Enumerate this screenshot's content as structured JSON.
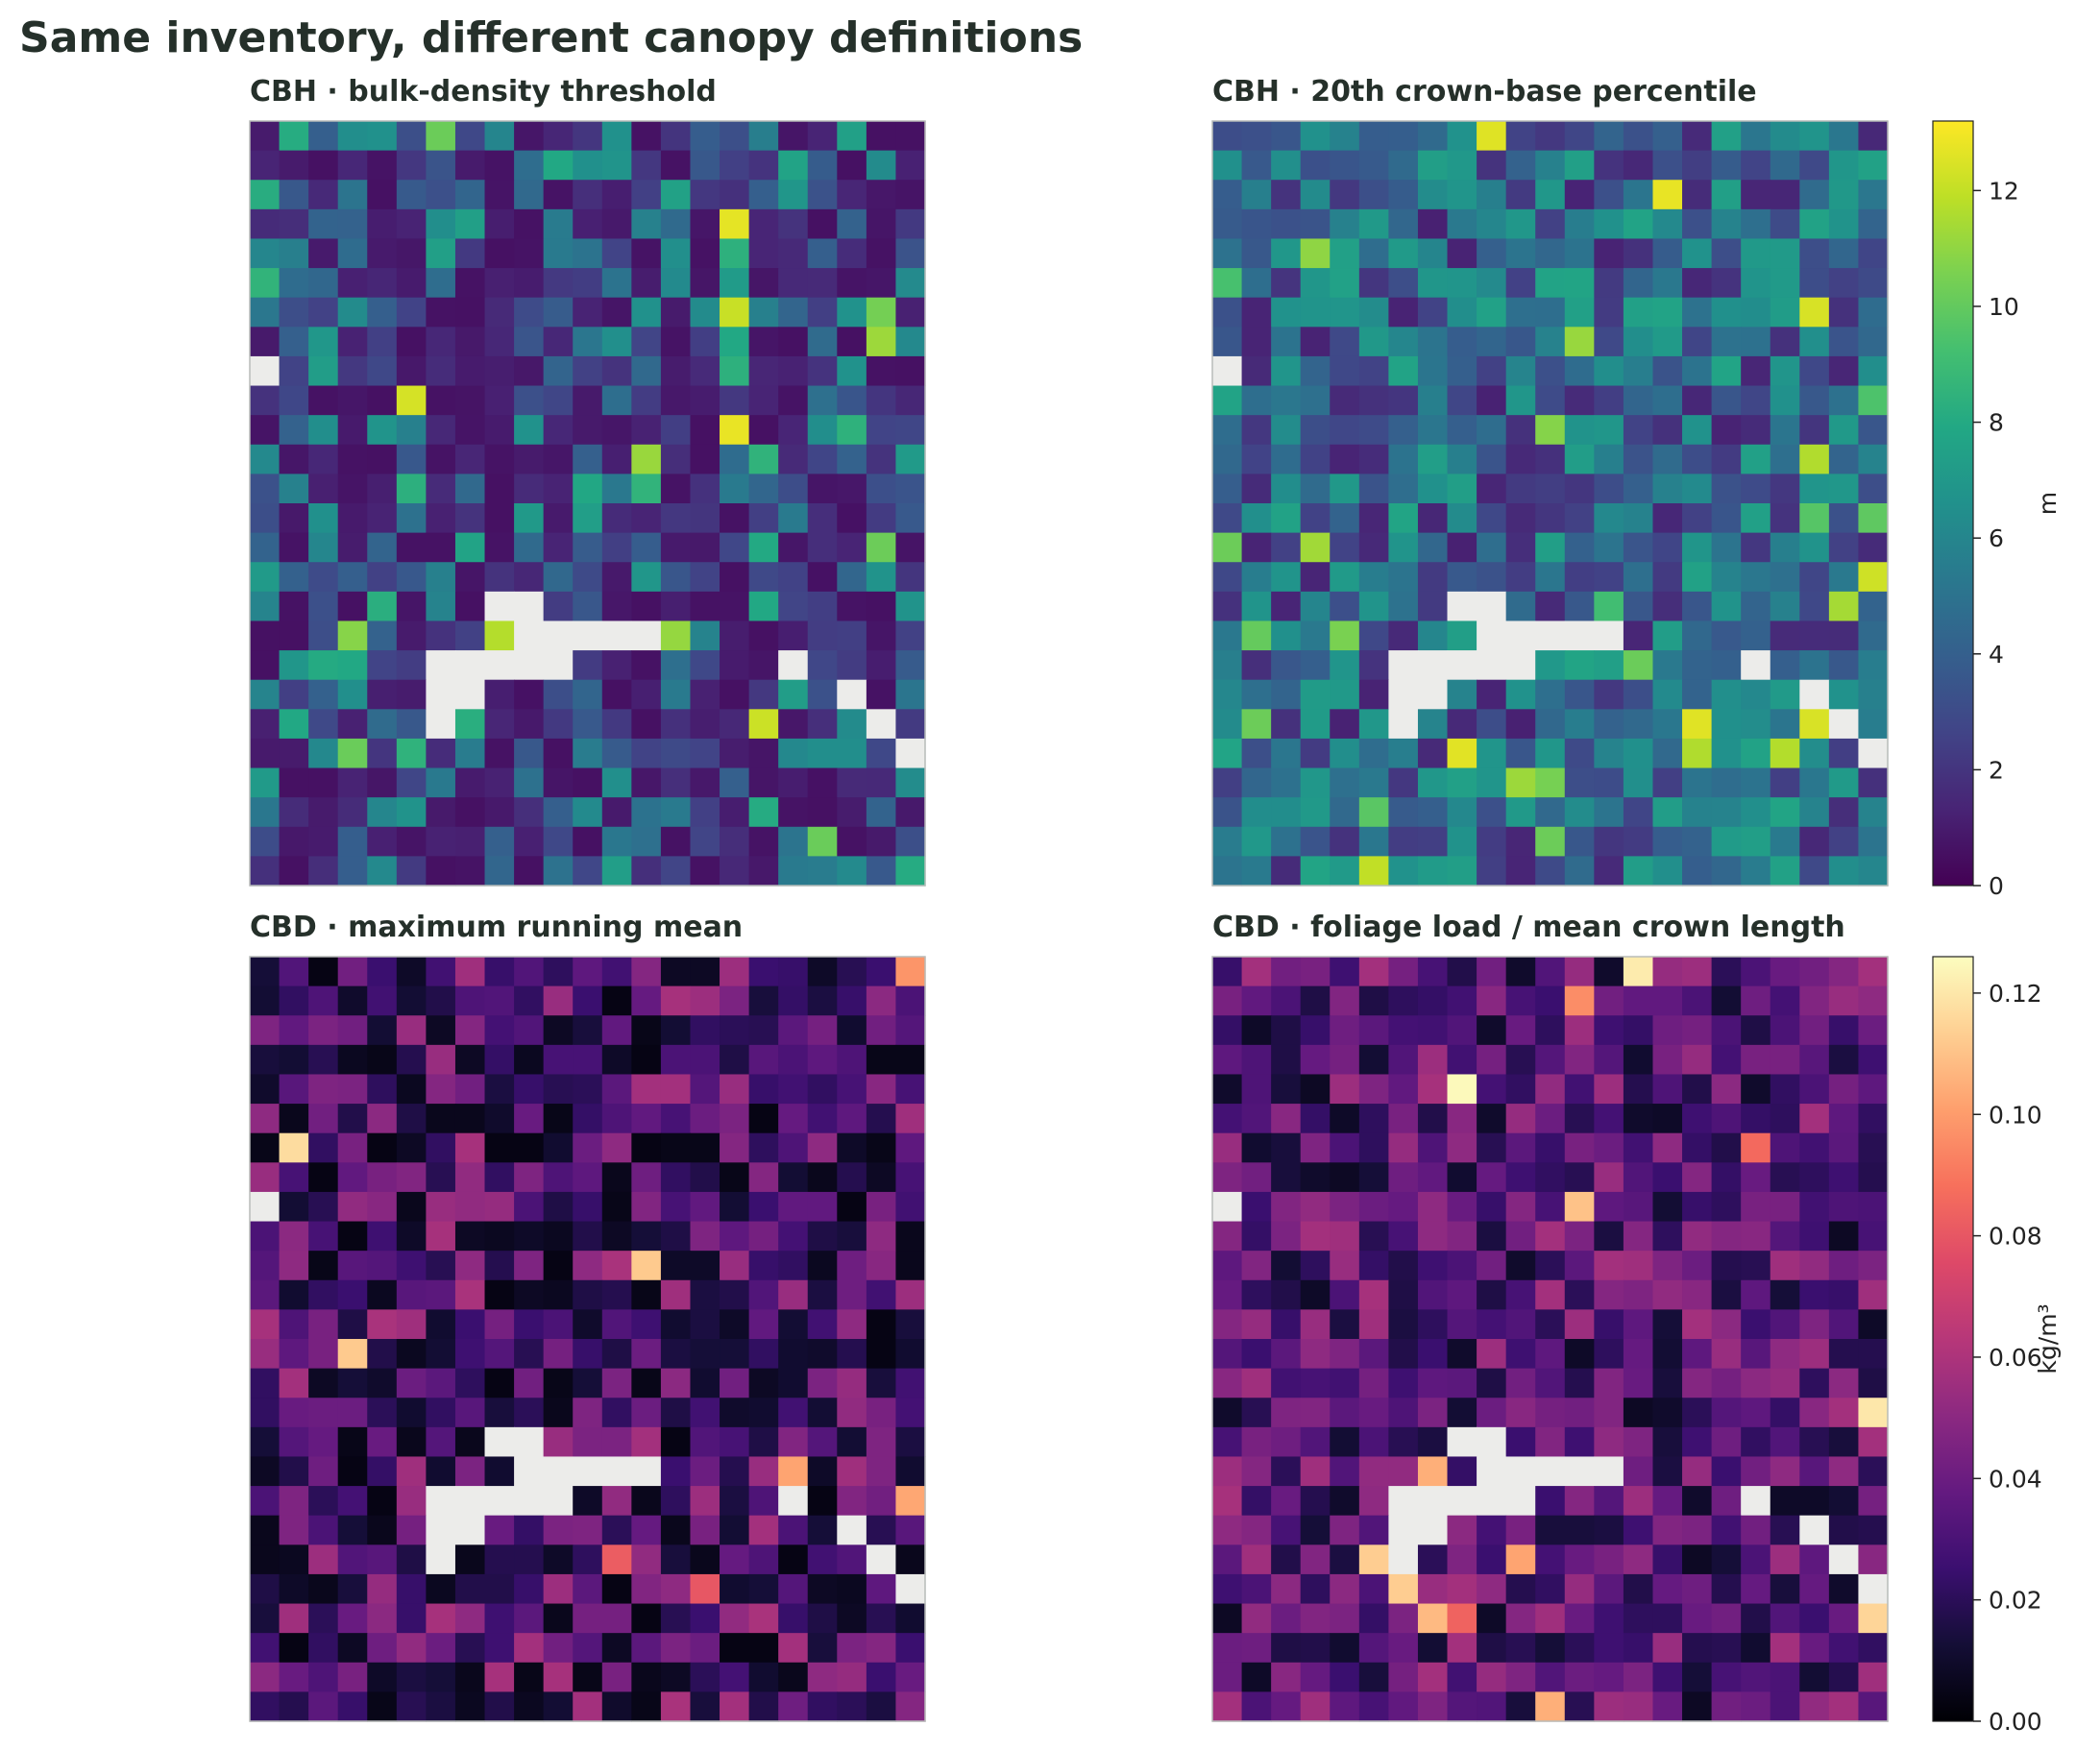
{
  "figure": {
    "title": "Same inventory, different canopy definitions"
  },
  "chart_data": [
    {
      "type": "heatmap",
      "title": "CBH · bulk-density threshold",
      "colormap": "viridis",
      "vmin": 0,
      "vmax": 13.2,
      "nodata_color": "#ececea",
      "grid": "26x23 cells (approximate reconstruction)",
      "note": "nodata cells shown in light gray",
      "values": []
    },
    {
      "type": "heatmap",
      "title": "CBH · 20th crown-base percentile",
      "colormap": "viridis",
      "vmin": 0,
      "vmax": 13.2,
      "nodata_color": "#ececea",
      "values": []
    },
    {
      "type": "heatmap",
      "title": "CBD · maximum running mean",
      "colormap": "magma",
      "vmin": 0,
      "vmax": 0.126,
      "nodata_color": "#ececea",
      "values": []
    },
    {
      "type": "heatmap",
      "title": "CBD · foliage load / mean crown length",
      "colormap": "magma",
      "vmin": 0,
      "vmax": 0.126,
      "nodata_color": "#ececea",
      "values": []
    }
  ],
  "colorbars": [
    {
      "label": "m",
      "ticks": [
        "0",
        "2",
        "4",
        "6",
        "8",
        "10",
        "12"
      ],
      "tick_values": [
        0,
        2,
        4,
        6,
        8,
        10,
        12
      ],
      "vmin": 0,
      "vmax": 13.2,
      "colormap": "viridis"
    },
    {
      "label": "kg/m³",
      "ticks": [
        "0.00",
        "0.02",
        "0.04",
        "0.06",
        "0.08",
        "0.10",
        "0.12"
      ],
      "tick_values": [
        0,
        0.02,
        0.04,
        0.06,
        0.08,
        0.1,
        0.12
      ],
      "vmin": 0,
      "vmax": 0.126,
      "colormap": "magma"
    }
  ]
}
